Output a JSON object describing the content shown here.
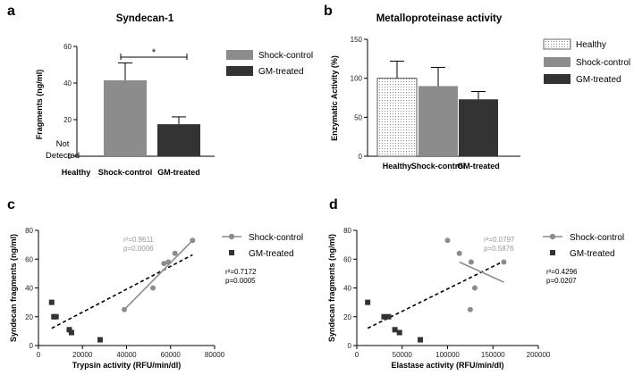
{
  "colors": {
    "shock": "#8c8c8c",
    "gm": "#333333",
    "healthy_fill": "#ffffff",
    "axis": "#000000",
    "annot_gray": "#999999"
  },
  "chart_data": [
    {
      "panel": "a",
      "type": "bar",
      "title": "Syndecan-1",
      "categories": [
        "Healthy",
        "Shock-control",
        "GM-treated"
      ],
      "values": [
        null,
        41.5,
        17.5
      ],
      "errors": [
        null,
        9.5,
        4
      ],
      "ylabel": "Fragments (ng/ml)",
      "ylim": [
        0,
        60
      ],
      "yticks": [
        0,
        20,
        40,
        60
      ],
      "not_detected": [
        "Not",
        "Detected"
      ],
      "significance": "*",
      "legend": [
        "Shock-control",
        "GM-treated"
      ]
    },
    {
      "panel": "b",
      "type": "bar",
      "title": "Metalloproteinase activity",
      "categories": [
        "Healthy",
        "Shock-control",
        "GM-treated"
      ],
      "values": [
        100,
        90,
        73
      ],
      "errors": [
        22,
        24,
        10
      ],
      "ylabel": "Enzymatic Activity (%)",
      "ylim": [
        0,
        150
      ],
      "yticks": [
        0,
        50,
        100,
        150
      ],
      "legend": [
        "Healthy",
        "Shock-control",
        "GM-treated"
      ]
    },
    {
      "panel": "c",
      "type": "scatter",
      "xlabel": "Trypsin activity (RFU/min/dl)",
      "ylabel": "Syndecan fragments (ng/ml)",
      "xlim": [
        0,
        80000
      ],
      "ylim": [
        0,
        80
      ],
      "xticks": [
        0,
        20000,
        40000,
        60000,
        80000
      ],
      "xtick_labels": [
        "0",
        "20000",
        "40000",
        "60000",
        "80000"
      ],
      "yticks": [
        0,
        20,
        40,
        60,
        80
      ],
      "series": [
        {
          "name": "Shock-control",
          "x": [
            39000,
            52000,
            57000,
            59000,
            62000,
            70000
          ],
          "y": [
            25,
            40,
            57,
            58,
            64,
            73
          ],
          "fit": [
            [
              39000,
              25
            ],
            [
              70000,
              73
            ]
          ],
          "r2": "r²=0.9611",
          "p": "p=0.0006"
        },
        {
          "name": "GM-treated",
          "x": [
            6000,
            7000,
            8000,
            14000,
            15000,
            28000
          ],
          "y": [
            30,
            20,
            20,
            11,
            9,
            4
          ],
          "r2": "r²=0.7172",
          "p": "p=0.0005"
        }
      ],
      "dashed_fit": [
        [
          6000,
          12
        ],
        [
          70000,
          63
        ]
      ]
    },
    {
      "panel": "d",
      "type": "scatter",
      "xlabel": "Elastase activity (RFU/min/dl)",
      "ylabel": "Syndecan fragments (ng/ml)",
      "xlim": [
        0,
        200000
      ],
      "ylim": [
        0,
        80
      ],
      "xticks": [
        0,
        50000,
        100000,
        150000,
        200000
      ],
      "xtick_labels": [
        "0",
        "50000",
        "100000",
        "150000",
        "200000"
      ],
      "yticks": [
        0,
        20,
        40,
        60,
        80
      ],
      "series": [
        {
          "name": "Shock-control",
          "x": [
            100000,
            113000,
            125000,
            126000,
            130000,
            162000
          ],
          "y": [
            73,
            64,
            25,
            58,
            40,
            58
          ],
          "fit": [
            [
              113000,
              58
            ],
            [
              162000,
              44
            ]
          ],
          "r2": "r²=0.0797",
          "p": "p=0.5876"
        },
        {
          "name": "GM-treated",
          "x": [
            12000,
            30000,
            35000,
            42000,
            47000,
            70000
          ],
          "y": [
            30,
            20,
            20,
            11,
            9,
            4
          ],
          "r2": "r²=0.4296",
          "p": "p=0.0207"
        }
      ],
      "dashed_fit": [
        [
          12000,
          12
        ],
        [
          160000,
          58
        ]
      ]
    }
  ]
}
